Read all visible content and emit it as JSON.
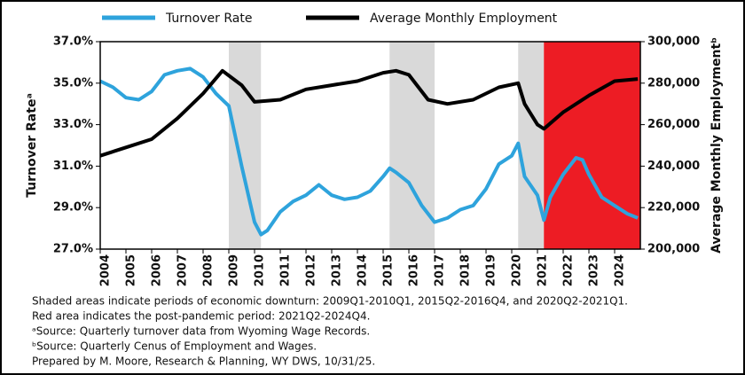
{
  "chart_data": {
    "type": "line",
    "series": [
      {
        "name": "Turnover Rate",
        "color": "#2ea3dc",
        "axis": "y",
        "x": [
          2004,
          2004.5,
          2005,
          2005.5,
          2006,
          2006.5,
          2007,
          2007.5,
          2008,
          2008.5,
          2009,
          2009.5,
          2010,
          2010.25,
          2010.5,
          2011,
          2011.5,
          2012,
          2012.5,
          2013,
          2013.5,
          2014,
          2014.5,
          2015,
          2015.25,
          2015.5,
          2016,
          2016.5,
          2017,
          2017.5,
          2018,
          2018.5,
          2019,
          2019.5,
          2020,
          2020.25,
          2020.5,
          2021,
          2021.25,
          2021.5,
          2022,
          2022.5,
          2022.75,
          2023,
          2023.5,
          2024,
          2024.5,
          2024.9
        ],
        "values": [
          35.1,
          34.8,
          34.3,
          34.2,
          34.6,
          35.4,
          35.6,
          35.7,
          35.3,
          34.5,
          33.9,
          31.0,
          28.3,
          27.7,
          27.9,
          28.8,
          29.3,
          29.6,
          30.1,
          29.6,
          29.4,
          29.5,
          29.8,
          30.5,
          30.9,
          30.7,
          30.2,
          29.1,
          28.3,
          28.5,
          28.9,
          29.1,
          29.9,
          31.1,
          31.5,
          32.1,
          30.5,
          29.6,
          28.4,
          29.5,
          30.6,
          31.4,
          31.3,
          30.6,
          29.5,
          29.1,
          28.7,
          28.5
        ]
      },
      {
        "name": "Average Monthly Employment",
        "color": "#000000",
        "axis": "y2",
        "x": [
          2004,
          2005,
          2006,
          2007,
          2008,
          2008.75,
          2009.5,
          2010,
          2011,
          2012,
          2013,
          2014,
          2015,
          2015.5,
          2016,
          2016.75,
          2017.5,
          2018.5,
          2019.5,
          2020.25,
          2020.5,
          2021,
          2021.25,
          2022,
          2023,
          2024,
          2024.9
        ],
        "values": [
          245000,
          249000,
          253000,
          263000,
          275000,
          286000,
          279000,
          271000,
          272000,
          277000,
          279000,
          281000,
          285000,
          286000,
          284000,
          272000,
          270000,
          272000,
          278000,
          280000,
          270000,
          260000,
          258000,
          266000,
          274000,
          281000,
          282000
        ]
      }
    ],
    "xlim": [
      2004,
      2025
    ],
    "xticks": [
      2004,
      2005,
      2006,
      2007,
      2008,
      2009,
      2010,
      2011,
      2012,
      2013,
      2014,
      2015,
      2016,
      2017,
      2018,
      2019,
      2020,
      2021,
      2022,
      2023,
      2024
    ],
    "ylim": [
      27,
      37
    ],
    "yticks": [
      {
        "value": 27,
        "label": "27.0%"
      },
      {
        "value": 29,
        "label": "29.0%"
      },
      {
        "value": 31,
        "label": "31.0%"
      },
      {
        "value": 33,
        "label": "33.0%"
      },
      {
        "value": 35,
        "label": "35.0%"
      },
      {
        "value": 37,
        "label": "37.0%"
      }
    ],
    "y2lim": [
      200000,
      300000
    ],
    "y2ticks": [
      {
        "value": 200000,
        "label": "200,000"
      },
      {
        "value": 220000,
        "label": "220,000"
      },
      {
        "value": 240000,
        "label": "240,000"
      },
      {
        "value": 260000,
        "label": "260,000"
      },
      {
        "value": 280000,
        "label": "280,000"
      },
      {
        "value": 300000,
        "label": "300,000"
      }
    ],
    "ylabel": "Turnover Rateᵃ",
    "y2label": "Average Monthly Employmentᵇ",
    "bands": [
      {
        "start": 2009,
        "end": 2010.25,
        "color": "#d9d9d9"
      },
      {
        "start": 2015.25,
        "end": 2017,
        "color": "#d9d9d9"
      },
      {
        "start": 2020.25,
        "end": 2021.25,
        "color": "#d9d9d9"
      },
      {
        "start": 2021.25,
        "end": 2025,
        "color": "#ed1c24"
      }
    ],
    "notes": [
      "Shaded areas indicate periods of economic downturn: 2009Q1-2010Q1, 2015Q2-2016Q4, and 2020Q2-2021Q1.",
      "Red area indicates the post-pandemic period: 2021Q2-2024Q4.",
      "ᵃSource: Quarterly turnover data from Wyoming Wage Records.",
      "ᵇSource: Quarterly Cenus of Employment and Wages.",
      "Prepared by M. Moore, Research & Planning, WY DWS, 10/31/25."
    ]
  }
}
